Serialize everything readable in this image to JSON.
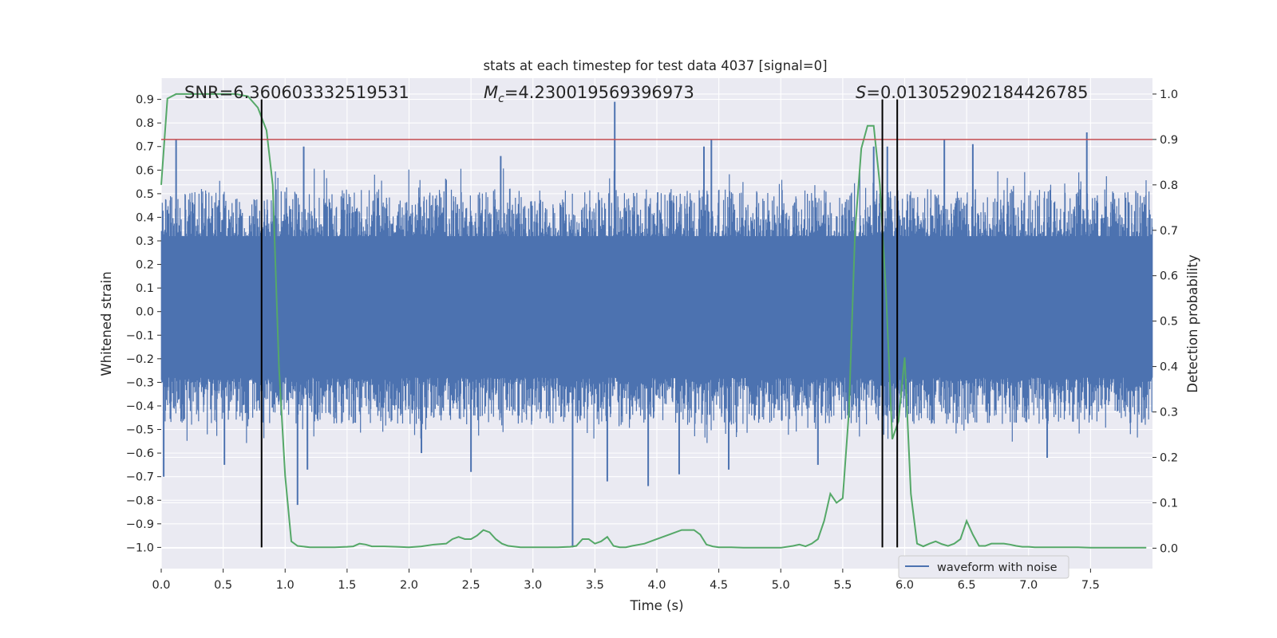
{
  "chart_data": {
    "type": "line",
    "title": "stats at each timestep for test data 4037 [signal=0]",
    "xlabel": "Time (s)",
    "ylabel_left": "Whitened strain",
    "ylabel_right": "Detection probability",
    "xlim": [
      0.0,
      8.0
    ],
    "ylim_left": [
      -1.09,
      0.99
    ],
    "ylim_right": [
      -0.045,
      1.035
    ],
    "x_ticks": [
      "0.0",
      "0.5",
      "1.0",
      "1.5",
      "2.0",
      "2.5",
      "3.0",
      "3.5",
      "4.0",
      "4.5",
      "5.0",
      "5.5",
      "6.0",
      "6.5",
      "7.0",
      "7.5"
    ],
    "y_ticks_left": [
      "0.9",
      "0.8",
      "0.7",
      "0.6",
      "0.5",
      "0.4",
      "0.3",
      "0.2",
      "0.1",
      "0.0",
      "−0.1",
      "−0.2",
      "−0.3",
      "−0.4",
      "−0.5",
      "−0.6",
      "−0.7",
      "−0.8",
      "−0.9",
      "−1.0"
    ],
    "y_ticks_right": [
      "1.0",
      "0.9",
      "0.8",
      "0.7",
      "0.6",
      "0.5",
      "0.4",
      "0.3",
      "0.2",
      "0.1",
      "0.0"
    ],
    "annotations": {
      "snr_prefix": "SNR=",
      "snr_value": "6.360603332519531",
      "mc_symbol": "M",
      "mc_subscript": "c",
      "mc_value": "=4.230019569396973",
      "s_symbol": "S",
      "s_value": "=0.013052902184426785"
    },
    "threshold": {
      "axis": "right",
      "value": 0.9,
      "color": "#c44e52"
    },
    "vlines": [
      0.81,
      5.82,
      5.94
    ],
    "vline_range_left": [
      -1.0,
      0.9
    ],
    "series": [
      {
        "name": "waveform with noise",
        "axis": "left",
        "color": "#4c72b0",
        "core_band": [
          -0.28,
          0.32
        ],
        "envelope": {
          "upper_typ": [
            0.3,
            0.52
          ],
          "lower_typ": [
            -0.28,
            -0.48
          ]
        },
        "spikes": [
          {
            "t": 0.02,
            "v": -0.7
          },
          {
            "t": 0.12,
            "v": 0.73
          },
          {
            "t": 1.1,
            "v": -0.82
          },
          {
            "t": 1.18,
            "v": -0.67
          },
          {
            "t": 1.15,
            "v": 0.7
          },
          {
            "t": 3.32,
            "v": -1.0
          },
          {
            "t": 3.66,
            "v": 0.89
          },
          {
            "t": 3.93,
            "v": -0.74
          },
          {
            "t": 4.44,
            "v": 0.73
          },
          {
            "t": 4.38,
            "v": 0.7
          },
          {
            "t": 4.18,
            "v": -0.69
          },
          {
            "t": 4.58,
            "v": -0.67
          },
          {
            "t": 5.86,
            "v": 0.7
          },
          {
            "t": 5.75,
            "v": 0.7
          },
          {
            "t": 7.47,
            "v": 0.76
          },
          {
            "t": 2.5,
            "v": -0.68
          },
          {
            "t": 0.51,
            "v": -0.65
          },
          {
            "t": 3.6,
            "v": -0.72
          },
          {
            "t": 6.55,
            "v": 0.71
          },
          {
            "t": 6.32,
            "v": 0.73
          },
          {
            "t": 2.74,
            "v": 0.66
          },
          {
            "t": 7.15,
            "v": -0.62
          },
          {
            "t": 5.3,
            "v": -0.65
          },
          {
            "t": 2.1,
            "v": -0.6
          }
        ]
      },
      {
        "name": "detection probability",
        "axis": "right",
        "color": "#55a868",
        "x": [
          0.0,
          0.05,
          0.12,
          0.2,
          0.3,
          0.4,
          0.5,
          0.6,
          0.7,
          0.78,
          0.85,
          0.9,
          0.95,
          1.0,
          1.05,
          1.1,
          1.2,
          1.3,
          1.4,
          1.5,
          1.55,
          1.6,
          1.65,
          1.7,
          1.8,
          1.9,
          2.0,
          2.1,
          2.2,
          2.3,
          2.35,
          2.4,
          2.45,
          2.5,
          2.55,
          2.6,
          2.65,
          2.7,
          2.75,
          2.8,
          2.9,
          3.0,
          3.1,
          3.2,
          3.3,
          3.35,
          3.4,
          3.45,
          3.5,
          3.55,
          3.6,
          3.65,
          3.7,
          3.75,
          3.8,
          3.9,
          4.0,
          4.1,
          4.2,
          4.3,
          4.35,
          4.4,
          4.45,
          4.5,
          4.6,
          4.7,
          4.8,
          4.9,
          5.0,
          5.1,
          5.15,
          5.2,
          5.25,
          5.3,
          5.35,
          5.4,
          5.45,
          5.5,
          5.55,
          5.6,
          5.65,
          5.7,
          5.75,
          5.8,
          5.85,
          5.9,
          5.95,
          6.0,
          6.05,
          6.1,
          6.15,
          6.2,
          6.25,
          6.3,
          6.35,
          6.4,
          6.45,
          6.5,
          6.55,
          6.6,
          6.65,
          6.7,
          6.75,
          6.8,
          6.85,
          6.9,
          6.95,
          7.0,
          7.05,
          7.1,
          7.15,
          7.2,
          7.3,
          7.4,
          7.5,
          7.6,
          7.7,
          7.8,
          7.9,
          7.95
        ],
        "y": [
          0.8,
          0.99,
          1.0,
          1.0,
          1.0,
          1.0,
          1.0,
          1.0,
          0.995,
          0.97,
          0.92,
          0.8,
          0.4,
          0.16,
          0.015,
          0.005,
          0.002,
          0.002,
          0.002,
          0.003,
          0.004,
          0.01,
          0.008,
          0.004,
          0.004,
          0.003,
          0.002,
          0.004,
          0.008,
          0.01,
          0.02,
          0.025,
          0.02,
          0.02,
          0.028,
          0.04,
          0.035,
          0.02,
          0.01,
          0.005,
          0.002,
          0.002,
          0.002,
          0.002,
          0.003,
          0.005,
          0.02,
          0.02,
          0.01,
          0.015,
          0.025,
          0.005,
          0.002,
          0.002,
          0.005,
          0.01,
          0.02,
          0.03,
          0.04,
          0.04,
          0.03,
          0.008,
          0.004,
          0.002,
          0.002,
          0.001,
          0.001,
          0.001,
          0.001,
          0.005,
          0.008,
          0.004,
          0.01,
          0.02,
          0.06,
          0.12,
          0.1,
          0.11,
          0.3,
          0.7,
          0.88,
          0.93,
          0.93,
          0.8,
          0.56,
          0.24,
          0.28,
          0.42,
          0.12,
          0.01,
          0.004,
          0.01,
          0.015,
          0.009,
          0.005,
          0.01,
          0.02,
          0.06,
          0.03,
          0.005,
          0.005,
          0.01,
          0.01,
          0.01,
          0.008,
          0.005,
          0.003,
          0.003,
          0.002,
          0.002,
          0.002,
          0.002,
          0.002,
          0.002,
          0.001,
          0.001,
          0.001,
          0.001,
          0.001,
          0.001
        ]
      }
    ],
    "legend": {
      "label": "waveform with noise",
      "placement": "lower-right"
    }
  }
}
